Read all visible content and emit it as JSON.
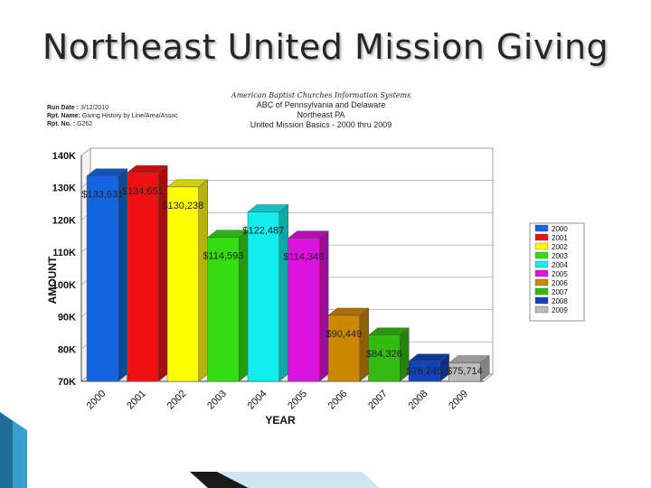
{
  "slide": {
    "title": "Northeast United Mission Giving"
  },
  "report": {
    "run_date_label": "Run Date :",
    "run_date": "3/12/2010",
    "rpt_name_label": "Rpt. Name:",
    "rpt_name": "Giving History by Line/Area/Assoc",
    "rpt_no_label": "Rpt. No. :",
    "rpt_no": "G262",
    "org_line1": "American Baptist Churches Information Systems",
    "org_line2": "ABC of Pennsylvania and Delaware",
    "org_line3": "Northeast PA",
    "org_line4": "United Mission Basics - 2000 thru 2009"
  },
  "chart_data": {
    "type": "bar",
    "title": "United Mission Basics - 2000 thru 2009",
    "xlabel": "YEAR",
    "ylabel": "AMOUNT",
    "ylim": [
      70000,
      140000
    ],
    "yticks": [
      70000,
      80000,
      90000,
      100000,
      110000,
      120000,
      130000,
      140000
    ],
    "ytick_labels": [
      "70K",
      "80K",
      "90K",
      "100K",
      "110K",
      "120K",
      "130K",
      "140K"
    ],
    "categories": [
      "2000",
      "2001",
      "2002",
      "2003",
      "2004",
      "2005",
      "2006",
      "2007",
      "2008",
      "2009"
    ],
    "values": [
      133631,
      134651,
      130238,
      114593,
      122487,
      114348,
      90449,
      84326,
      76245,
      75714
    ],
    "data_labels": [
      "$133,631",
      "$134,651",
      "$130,238",
      "$114,593",
      "$122,487",
      "$114,348",
      "$90,449",
      "$84,326",
      "$76,245",
      "$75,714"
    ],
    "colors": [
      "#1565e0",
      "#ee1111",
      "#ffff00",
      "#33dd11",
      "#11eeee",
      "#dd11dd",
      "#cc8800",
      "#33bb11",
      "#1144bb",
      "#bbbbbb"
    ],
    "legend": [
      "2000",
      "2001",
      "2002",
      "2003",
      "2004",
      "2005",
      "2006",
      "2007",
      "2008",
      "2009"
    ],
    "legend_position": "right",
    "grid": true
  }
}
